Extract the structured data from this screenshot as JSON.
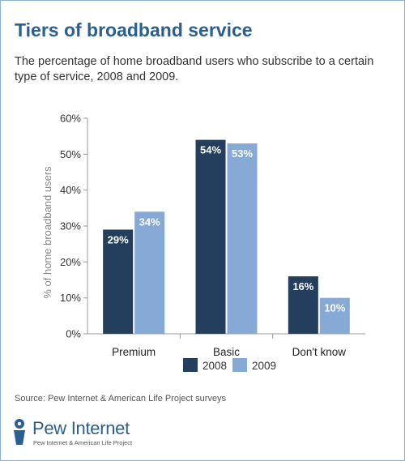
{
  "header": {
    "title": "Tiers of broadband service",
    "subtitle": "The percentage of home broadband users who subscribe to a certain type of service, 2008 and 2009."
  },
  "chart_data": {
    "type": "bar",
    "title": "Tiers of broadband service",
    "xlabel": "",
    "ylabel": "% of home broadband users",
    "ylim": [
      0,
      60
    ],
    "y_ticks": [
      0,
      10,
      20,
      30,
      40,
      50,
      60
    ],
    "y_tick_labels": [
      "0%",
      "10%",
      "20%",
      "30%",
      "40%",
      "50%",
      "60%"
    ],
    "categories": [
      "Premium",
      "Basic",
      "Don't know"
    ],
    "series": [
      {
        "name": "2008",
        "values": [
          29,
          54,
          16
        ],
        "labels": [
          "29%",
          "54%",
          "16%"
        ],
        "color": "#243e5e"
      },
      {
        "name": "2009",
        "values": [
          34,
          53,
          10
        ],
        "labels": [
          "34%",
          "53%",
          "10%"
        ],
        "color": "#87a9d6"
      }
    ],
    "legend_position": "bottom-center",
    "grid": false
  },
  "footer": {
    "source": "Source: Pew Internet & American Life Project surveys",
    "logo_name": "Pew Internet",
    "logo_tagline": "Pew Internet & American Life Project",
    "brand_color": "#2b5f8f"
  }
}
